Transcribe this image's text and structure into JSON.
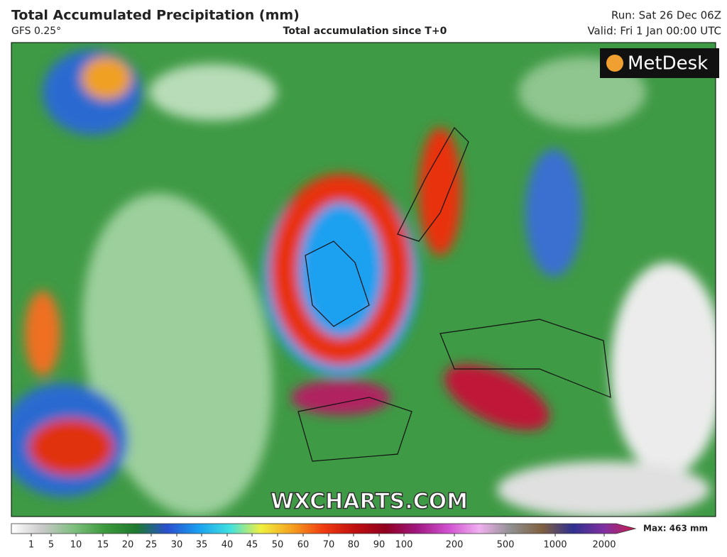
{
  "header": {
    "title": "Total Accumulated Precipitation (mm)",
    "model": "GFS 0.25°",
    "subtitle": "Total accumulation since T+0",
    "run": "Run: Sat 26 Dec 06Z",
    "valid": "Valid: Fri 1 Jan 00:00 UTC"
  },
  "logo": "MetDesk",
  "watermark": "WXCHARTS.COM",
  "colorbar": {
    "ticks": [
      1,
      5,
      10,
      15,
      20,
      25,
      30,
      35,
      40,
      45,
      50,
      60,
      70,
      80,
      90,
      100,
      200,
      500,
      1000,
      2000
    ],
    "colors": [
      "#ffffff",
      "#c8c8c8",
      "#7fbf7f",
      "#3c9a3c",
      "#1f7a2f",
      "#2a4fd0",
      "#1aa0f0",
      "#40e0e0",
      "#f0f040",
      "#f5a020",
      "#f03c10",
      "#c01010",
      "#900020",
      "#a01880",
      "#d050d0",
      "#f0b0f0",
      "#909090",
      "#806040",
      "#303090",
      "#8030a0",
      "#c81e4e"
    ],
    "max": "Max: 463 mm"
  }
}
